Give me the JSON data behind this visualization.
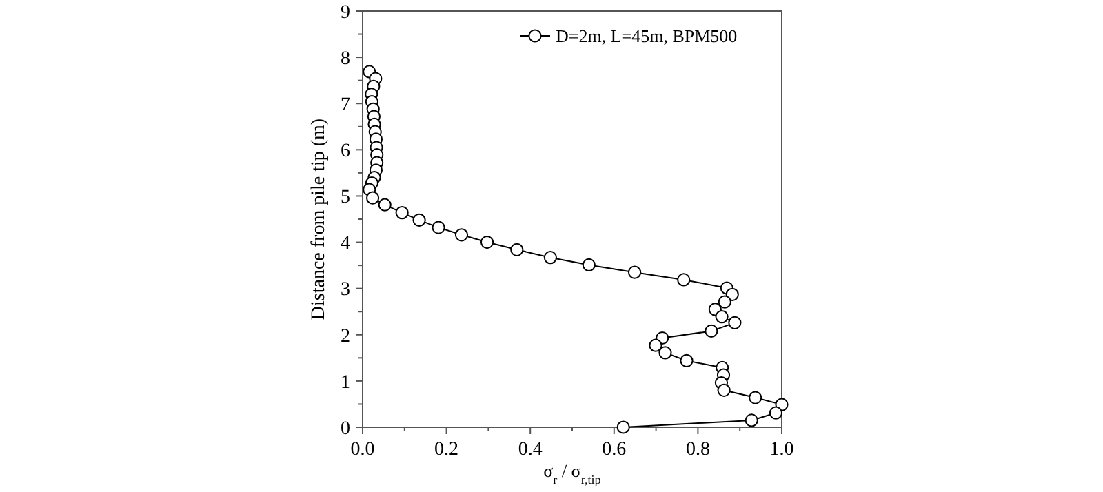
{
  "chart_data": {
    "type": "line",
    "xlabel": "σ$_{r}$ / σ$_{r,tip}$",
    "ylabel": "Distance from pile tip (m)",
    "xlim": [
      0,
      1
    ],
    "xticks": [
      {
        "value": 0,
        "label": "0.0"
      },
      {
        "value": 0.1,
        "label": null
      },
      {
        "value": 0.2,
        "label": "0.2"
      },
      {
        "value": 0.3,
        "label": null
      },
      {
        "value": 0.4,
        "label": "0.4"
      },
      {
        "value": 0.5,
        "label": null
      },
      {
        "value": 0.6,
        "label": "0.6"
      },
      {
        "value": 0.7,
        "label": null
      },
      {
        "value": 0.8,
        "label": "0.8"
      },
      {
        "value": 0.9,
        "label": null
      },
      {
        "value": 1,
        "label": "1.0"
      }
    ],
    "ylim": [
      0,
      9
    ],
    "yticks": [
      0,
      {
        "value": 0.5,
        "label": null
      },
      1,
      {
        "value": 1.5,
        "label": null
      },
      2,
      {
        "value": 2.5,
        "label": null
      },
      3,
      {
        "value": 3.5,
        "label": null
      },
      4,
      {
        "value": 4.5,
        "label": null
      },
      5,
      {
        "value": 5.5,
        "label": null
      },
      6,
      {
        "value": 6.5,
        "label": null
      },
      7,
      {
        "value": 7.5,
        "label": null
      },
      8,
      {
        "value": 8.5,
        "label": null
      },
      9
    ],
    "marker": "circle",
    "line_style": "solid",
    "grid": false,
    "legend": "top right",
    "series": [
      {
        "name": "D=2m, L=45m, BPM500",
        "color": "#000000",
        "x": [
          0.016,
          0.031,
          0.026,
          0.021,
          0.022,
          0.025,
          0.027,
          0.028,
          0.03,
          0.032,
          0.033,
          0.034,
          0.034,
          0.032,
          0.028,
          0.022,
          0.016,
          0.024,
          0.053,
          0.094,
          0.135,
          0.181,
          0.236,
          0.297,
          0.368,
          0.448,
          0.54,
          0.649,
          0.766,
          0.869,
          0.882,
          0.864,
          0.841,
          0.857,
          0.888,
          0.832,
          0.715,
          0.699,
          0.722,
          0.773,
          0.858,
          0.861,
          0.856,
          0.862,
          0.937,
          1.0,
          0.986,
          0.928,
          0.622
        ],
        "values": [
          7.69,
          7.54,
          7.37,
          7.2,
          7.04,
          6.88,
          6.72,
          6.55,
          6.39,
          6.23,
          6.05,
          5.89,
          5.72,
          5.56,
          5.4,
          5.28,
          5.14,
          4.96,
          4.81,
          4.64,
          4.48,
          4.32,
          4.16,
          4.0,
          3.84,
          3.67,
          3.51,
          3.35,
          3.19,
          3.01,
          2.87,
          2.71,
          2.55,
          2.39,
          2.26,
          2.08,
          1.93,
          1.77,
          1.61,
          1.44,
          1.29,
          1.13,
          0.96,
          0.8,
          0.64,
          0.49,
          0.31,
          0.15,
          0.0
        ]
      }
    ]
  }
}
